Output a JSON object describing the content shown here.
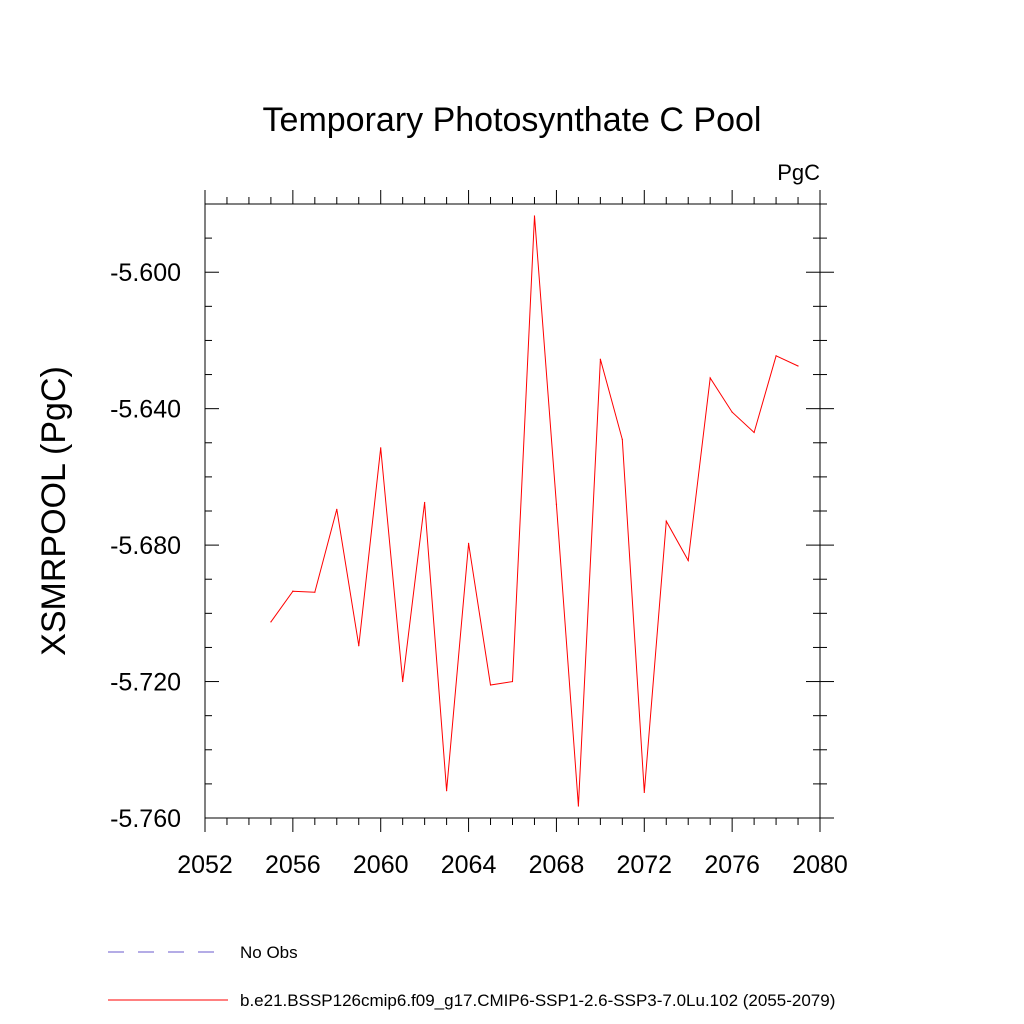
{
  "chart_data": {
    "type": "line",
    "title": "Temporary Photosynthate C Pool",
    "units": "PgC",
    "ylabel": "XSMRPOOL  (PgC)",
    "xlabel": "",
    "xlim": [
      2052,
      2080
    ],
    "ylim": [
      -5.76,
      -5.58
    ],
    "xticks": [
      "2052",
      "2056",
      "2060",
      "2064",
      "2068",
      "2072",
      "2076",
      "2080"
    ],
    "yticks": [
      "-5.600",
      "-5.640",
      "-5.680",
      "-5.720",
      "-5.760"
    ],
    "grid": false,
    "legend_position": "bottom",
    "series": [
      {
        "name": "No Obs",
        "color": "#6a5acd",
        "style": "dashed",
        "values": []
      },
      {
        "name": "b.e21.BSSP126cmip6.f09_g17.CMIP6-SSP1-2.6-SSP3-7.0Lu.102 (2055-2079)",
        "color": "#ff0000",
        "style": "solid",
        "x": [
          2055,
          2056,
          2057,
          2058,
          2059,
          2060,
          2061,
          2062,
          2063,
          2064,
          2065,
          2066,
          2067,
          2068,
          2069,
          2070,
          2071,
          2072,
          2073,
          2074,
          2075,
          2076,
          2077,
          2078,
          2079
        ],
        "values": [
          -5.7025,
          -5.6935,
          -5.6938,
          -5.6695,
          -5.7095,
          -5.6515,
          -5.72,
          -5.6675,
          -5.752,
          -5.6795,
          -5.721,
          -5.72,
          -5.5835,
          -5.668,
          -5.7565,
          -5.6255,
          -5.649,
          -5.7525,
          -5.673,
          -5.6845,
          -5.631,
          -5.641,
          -5.647,
          -5.6245,
          -5.6275
        ]
      }
    ]
  }
}
